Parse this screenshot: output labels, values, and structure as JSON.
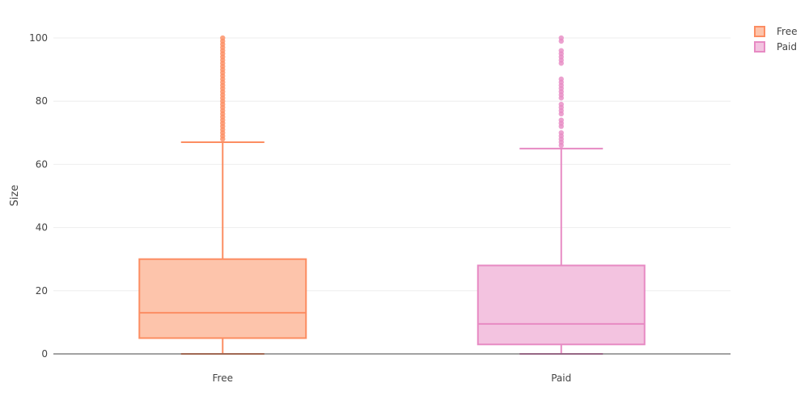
{
  "chart_data": {
    "type": "box",
    "title": "",
    "xlabel": "",
    "ylabel": "Size",
    "ylim": [
      0,
      100
    ],
    "yticks": [
      0,
      20,
      40,
      60,
      80,
      100
    ],
    "grid": true,
    "legend_position": "top-right",
    "categories": [
      "Free",
      "Paid"
    ],
    "series": [
      {
        "name": "Free",
        "category": "Free",
        "color": "#fc8d62",
        "fill": "#fdc4ab",
        "min": 0,
        "q1": 5,
        "median": 13,
        "q3": 30,
        "upper_fence": 67,
        "outliers": [
          68,
          69,
          70,
          71,
          72,
          73,
          74,
          75,
          76,
          77,
          78,
          79,
          80,
          81,
          82,
          83,
          84,
          85,
          86,
          87,
          88,
          89,
          90,
          91,
          92,
          93,
          94,
          95,
          96,
          97,
          98,
          99,
          100
        ]
      },
      {
        "name": "Paid",
        "category": "Paid",
        "color": "#e78ac3",
        "fill": "#f3c3e0",
        "min": 0,
        "q1": 3,
        "median": 9.5,
        "q3": 28,
        "upper_fence": 65,
        "outliers": [
          66,
          67,
          68,
          69,
          70,
          72,
          73,
          74,
          76,
          77,
          78,
          79,
          81,
          82,
          83,
          84,
          85,
          86,
          87,
          92,
          93,
          94,
          95,
          96,
          99,
          100
        ]
      }
    ]
  }
}
